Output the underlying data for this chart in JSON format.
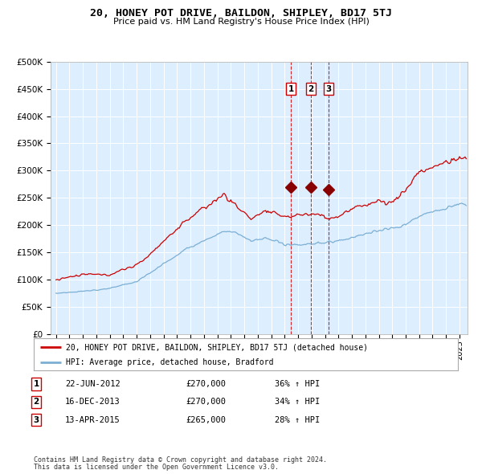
{
  "title": "20, HONEY POT DRIVE, BAILDON, SHIPLEY, BD17 5TJ",
  "subtitle": "Price paid vs. HM Land Registry's House Price Index (HPI)",
  "legend_line1": "20, HONEY POT DRIVE, BAILDON, SHIPLEY, BD17 5TJ (detached house)",
  "legend_line2": "HPI: Average price, detached house, Bradford",
  "transactions": [
    {
      "num": 1,
      "date": "22-JUN-2012",
      "price": 270000,
      "hpi_pct": "36% ↑ HPI"
    },
    {
      "num": 2,
      "date": "16-DEC-2013",
      "price": 270000,
      "hpi_pct": "34% ↑ HPI"
    },
    {
      "num": 3,
      "date": "13-APR-2015",
      "price": 265000,
      "hpi_pct": "28% ↑ HPI"
    }
  ],
  "transaction_dates_decimal": [
    2012.47,
    2013.96,
    2015.28
  ],
  "footnote1": "Contains HM Land Registry data © Crown copyright and database right 2024.",
  "footnote2": "This data is licensed under the Open Government Licence v3.0.",
  "red_line_color": "#cc0000",
  "blue_line_color": "#7bafd4",
  "background_color": "#ddeeff",
  "plot_bg_color": "#ddeeff",
  "grid_color": "#ffffff",
  "dashed_line_color": "#cc0000",
  "marker_color": "#880000",
  "ylim": [
    0,
    500000
  ],
  "yticks": [
    0,
    50000,
    100000,
    150000,
    200000,
    250000,
    300000,
    350000,
    400000,
    450000,
    500000
  ],
  "xlim_start": 1994.6,
  "xlim_end": 2025.6
}
